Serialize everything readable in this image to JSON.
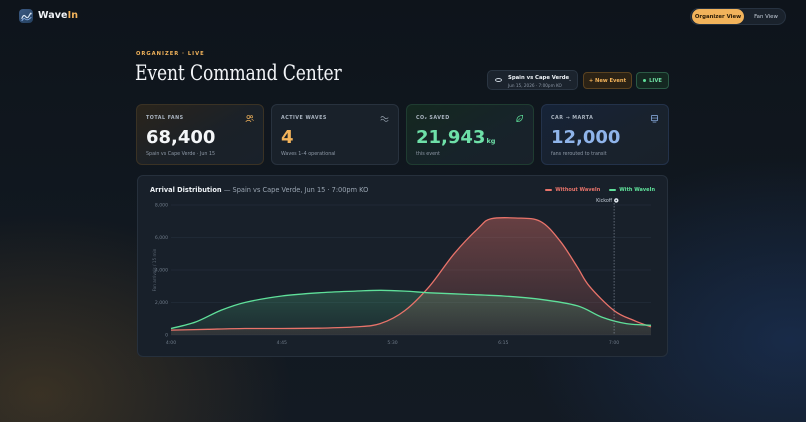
{
  "app": {
    "name_main": "Wave",
    "name_accent": "In"
  },
  "view_toggle": {
    "organizer_label": "Organizer View",
    "fan_label": "Fan View",
    "active": "organizer"
  },
  "header": {
    "eyebrow": "ORGANIZER · LIVE",
    "title": "Event Command Center",
    "event_name": "Spain vs Cape Verde",
    "event_detail": "Jun 15, 2026 · 7:00pm KO",
    "new_event_label": "+ New Event",
    "live_label": "LIVE"
  },
  "stats": [
    {
      "label": "TOTAL FANS",
      "value": "68,400",
      "unit": "",
      "sub": "Spain vs Cape Verde · Jun 15",
      "icon": "users-icon"
    },
    {
      "label": "ACTIVE WAVES",
      "value": "4",
      "unit": "",
      "sub": "Waves 1–4 operational",
      "icon": "wave-icon"
    },
    {
      "label": "CO₂ SAVED",
      "value": "21,943",
      "unit": "kg",
      "sub": "this event",
      "icon": "leaf-icon"
    },
    {
      "label": "CAR → MARTA",
      "value": "12,000",
      "unit": "",
      "sub": "fans rerouted to transit",
      "icon": "train-icon"
    }
  ],
  "colors": {
    "accent": "#f2b35b",
    "green": "#5fe09a",
    "red": "#e8736a",
    "blue": "#8fb4ea"
  },
  "chart_data": {
    "type": "area",
    "title": "Arrival Distribution",
    "subtitle": "— Spain vs Cape Verde, Jun 15 · 7:00pm KO",
    "ylabel": "Fan arrivals / 15 min",
    "ylim": [
      0,
      8000
    ],
    "yticks": [
      "0",
      "2,000",
      "4,000",
      "6,000",
      "8,000"
    ],
    "xticks": [
      {
        "label": "4:00",
        "x": 0
      },
      {
        "label": "4:45",
        "x": 45
      },
      {
        "label": "5:30",
        "x": 90
      },
      {
        "label": "6:15",
        "x": 135
      },
      {
        "label": "7:00",
        "x": 180
      }
    ],
    "xlim": [
      0,
      195
    ],
    "kickoff": {
      "label": "Kickoff",
      "x": 180
    },
    "grid": true,
    "legend_position": "top-right",
    "series": [
      {
        "name": "Without WaveIn",
        "color": "#e8736a",
        "points": [
          [
            0,
            300
          ],
          [
            15,
            350
          ],
          [
            30,
            400
          ],
          [
            45,
            400
          ],
          [
            60,
            420
          ],
          [
            75,
            500
          ],
          [
            85,
            700
          ],
          [
            95,
            1500
          ],
          [
            105,
            3000
          ],
          [
            115,
            5000
          ],
          [
            125,
            6600
          ],
          [
            130,
            7150
          ],
          [
            140,
            7200
          ],
          [
            150,
            7000
          ],
          [
            158,
            5800
          ],
          [
            165,
            4200
          ],
          [
            170,
            3000
          ],
          [
            180,
            1500
          ],
          [
            188,
            900
          ],
          [
            195,
            500
          ]
        ]
      },
      {
        "name": "With WaveIn",
        "color": "#5fe09a",
        "points": [
          [
            0,
            400
          ],
          [
            10,
            800
          ],
          [
            20,
            1500
          ],
          [
            30,
            2000
          ],
          [
            45,
            2400
          ],
          [
            60,
            2600
          ],
          [
            75,
            2700
          ],
          [
            85,
            2750
          ],
          [
            95,
            2700
          ],
          [
            105,
            2600
          ],
          [
            120,
            2500
          ],
          [
            135,
            2400
          ],
          [
            150,
            2200
          ],
          [
            165,
            1800
          ],
          [
            175,
            1100
          ],
          [
            185,
            700
          ],
          [
            195,
            600
          ]
        ]
      }
    ]
  }
}
